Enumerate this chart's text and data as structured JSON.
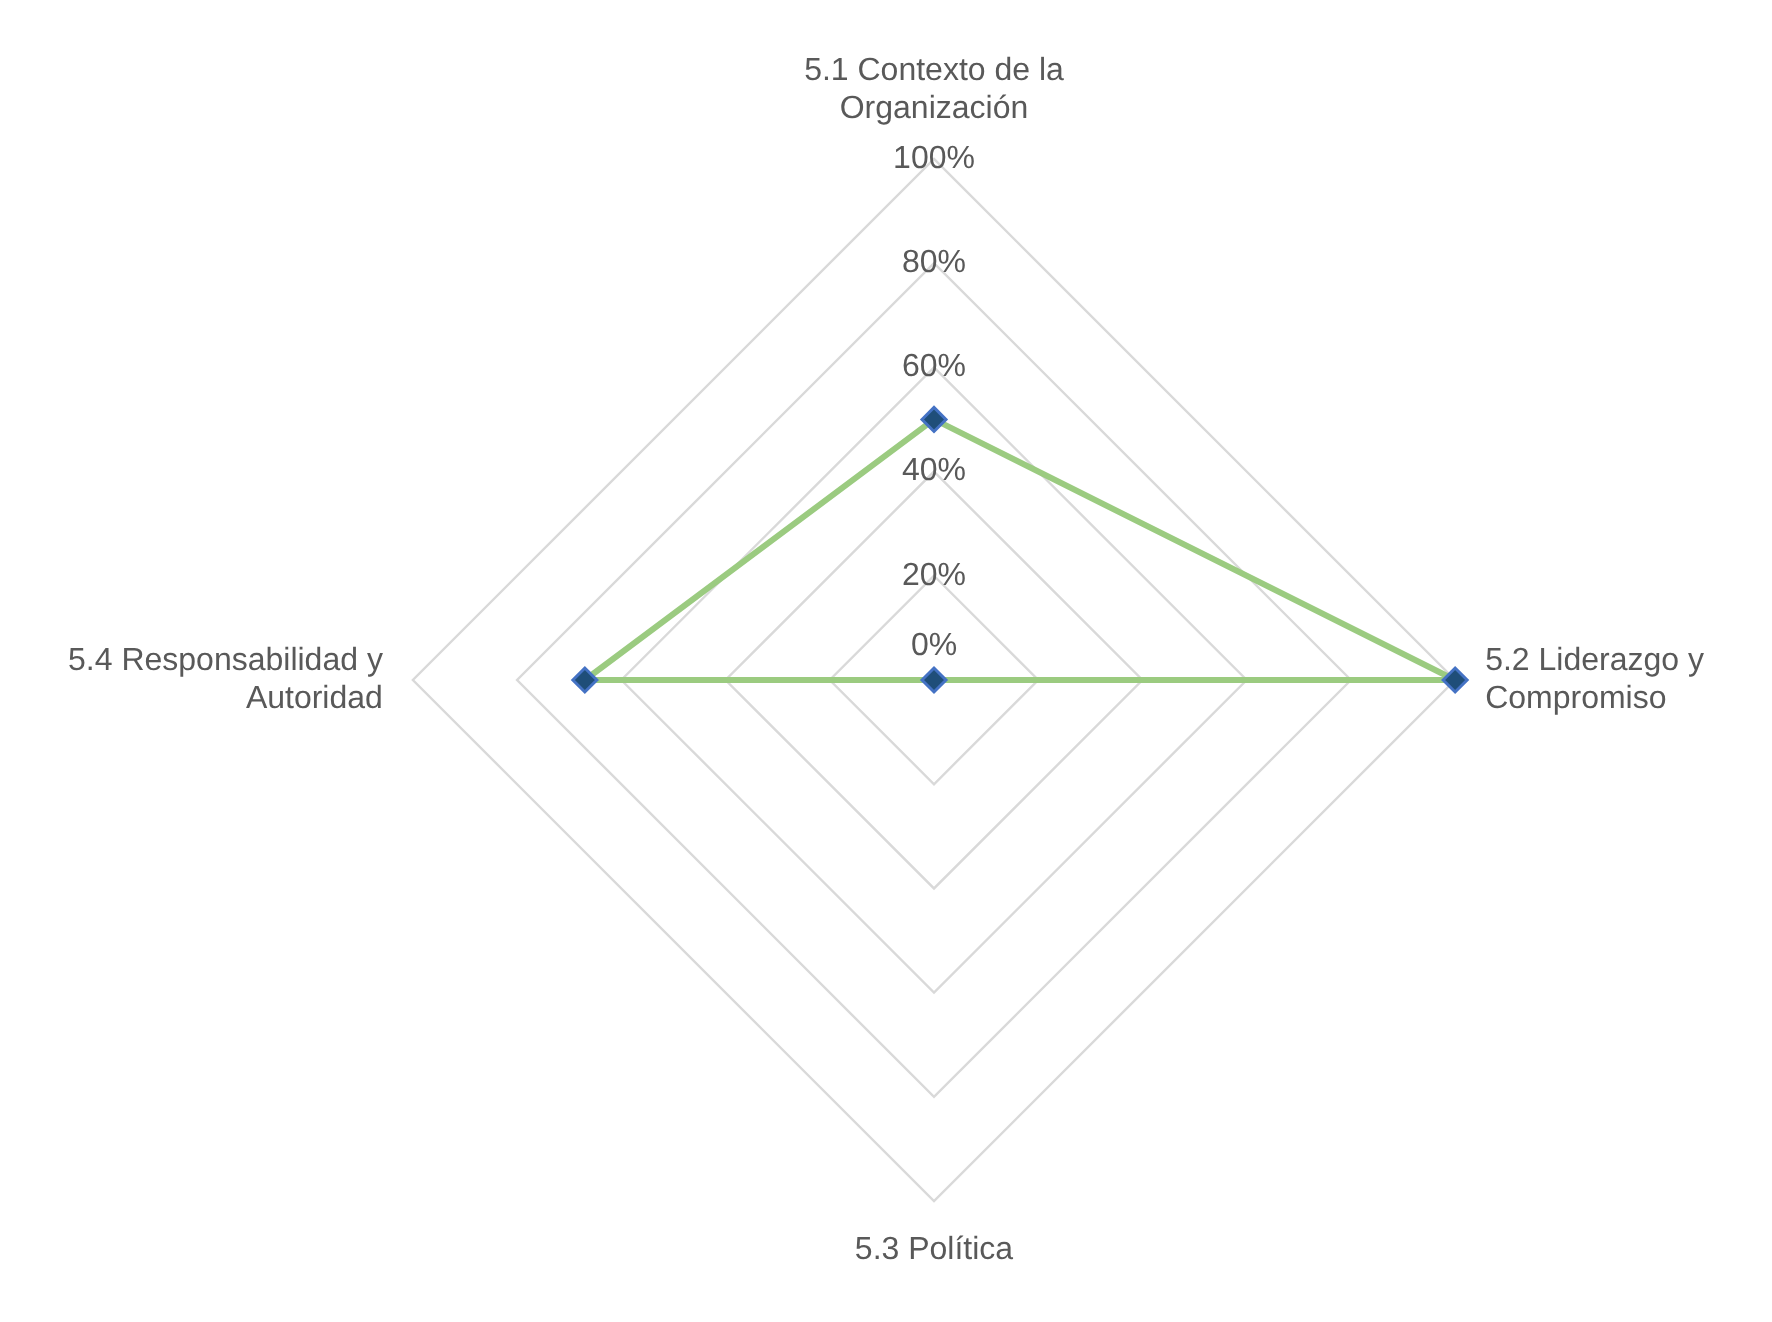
{
  "chart_data": {
    "type": "radar",
    "categories": [
      "5.1 Contexto de la Organización",
      "5.2 Liderazgo y Compromiso",
      "5.3 Política",
      "5.4 Responsabilidad y Autoridad"
    ],
    "series": [
      {
        "color": "#9bcb80",
        "values": [
          50,
          100,
          0,
          67
        ]
      }
    ],
    "ylim": [
      0,
      100
    ],
    "yticks": [
      {
        "value": 0,
        "label": "0%"
      },
      {
        "value": 20,
        "label": "20%"
      },
      {
        "value": 40,
        "label": "40%"
      },
      {
        "value": 60,
        "label": "60%"
      },
      {
        "value": 80,
        "label": "80%"
      },
      {
        "value": 100,
        "label": "100%"
      }
    ],
    "grid": true,
    "marker": "diamond",
    "legend": false
  }
}
